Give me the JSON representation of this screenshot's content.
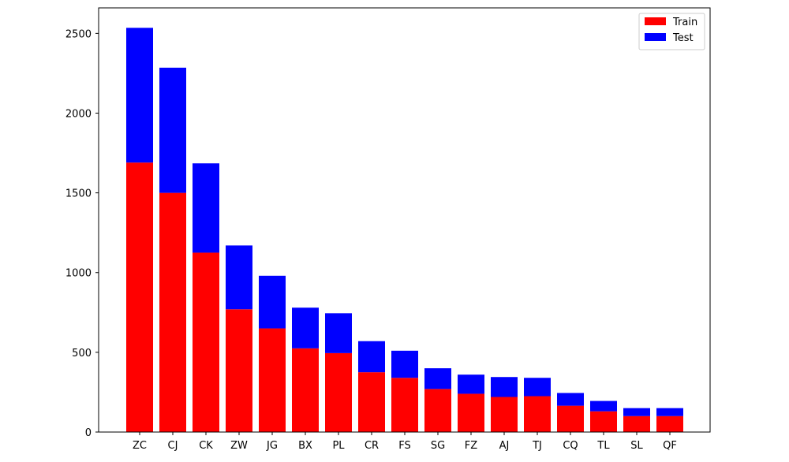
{
  "chart_data": {
    "type": "bar",
    "stacked": true,
    "categories": [
      "ZC",
      "CJ",
      "CK",
      "ZW",
      "JG",
      "BX",
      "PL",
      "CR",
      "FS",
      "SG",
      "FZ",
      "AJ",
      "TJ",
      "CQ",
      "TL",
      "SL",
      "QF"
    ],
    "series": [
      {
        "name": "Train",
        "color": "#ff0000",
        "values": [
          1690,
          1500,
          1125,
          770,
          650,
          525,
          495,
          375,
          340,
          270,
          240,
          220,
          225,
          165,
          130,
          100,
          100
        ]
      },
      {
        "name": "Test",
        "color": "#0000ff",
        "values": [
          845,
          785,
          560,
          400,
          330,
          255,
          250,
          195,
          170,
          130,
          120,
          125,
          115,
          80,
          65,
          50,
          50
        ]
      }
    ],
    "title": "",
    "xlabel": "",
    "ylabel": "",
    "ylim": [
      0,
      2660
    ],
    "yticks": [
      0,
      500,
      1000,
      1500,
      2000,
      2500
    ],
    "grid": false,
    "legend_position": "top-right"
  }
}
